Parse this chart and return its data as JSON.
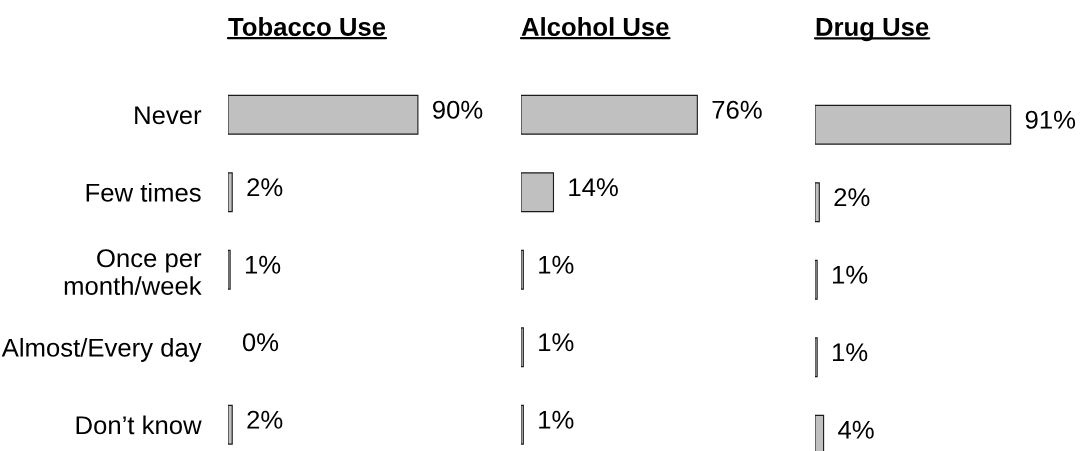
{
  "chart_data": [
    {
      "type": "bar",
      "orientation": "horizontal",
      "title": "Tobacco Use",
      "categories": [
        "Never",
        "Few times",
        "Once per\nmonth/week",
        "Almost/Every day",
        "Don’t know"
      ],
      "values": [
        90,
        2,
        1,
        0,
        2
      ],
      "value_labels": [
        "90%",
        "2%",
        "1%",
        "0%",
        "2%"
      ],
      "color": "#c0c0c0",
      "tick_labels": "y"
    },
    {
      "type": "bar",
      "orientation": "horizontal",
      "title": "Alcohol Use",
      "values": [
        76,
        14,
        1,
        1,
        1
      ],
      "value_labels": [
        "76%",
        "14%",
        "1%",
        "1%",
        "1%"
      ],
      "color": "#c0c0c0",
      "tick_labels": false
    },
    {
      "type": "bar",
      "orientation": "horizontal",
      "title": "Drug Use",
      "values": [
        91,
        2,
        1,
        1,
        4
      ],
      "value_labels": [
        "91%",
        "2%",
        "1%",
        "1%",
        "4%"
      ],
      "color": "#c0c0c0",
      "tick_labels": false
    }
  ]
}
